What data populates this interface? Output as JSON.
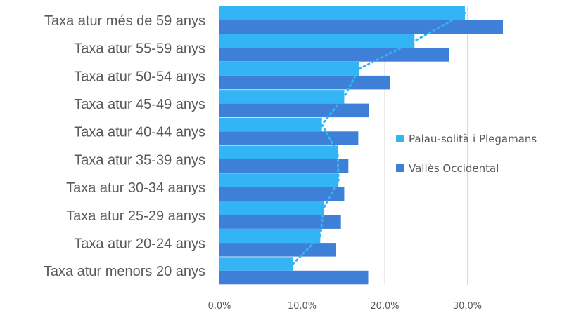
{
  "chart_data": {
    "type": "bar",
    "orientation": "horizontal",
    "categories": [
      "Taxa atur més de 59 anys",
      "Taxa atur 55-59 anys",
      "Taxa atur 50-54 anys",
      "Taxa atur 45-49 anys",
      "Taxa atur 40-44 anys",
      "Taxa atur 35-39 anys",
      "Taxa atur 30-34 aanys",
      "Taxa atur 25-29 aanys",
      "Taxa atur 20-24 anys",
      "Taxa atur menors 20 anys"
    ],
    "series": [
      {
        "name": "Palau-solità i Plegamans",
        "color": "#33b5f5",
        "values": [
          29.7,
          23.6,
          16.9,
          15.1,
          12.4,
          14.3,
          14.4,
          12.6,
          12.2,
          8.9
        ]
      },
      {
        "name": "Vallès Occidental",
        "color": "#3e80d8",
        "values": [
          34.3,
          27.8,
          20.6,
          18.1,
          16.8,
          15.6,
          15.1,
          14.7,
          14.1,
          18.0
        ]
      }
    ],
    "trendline": {
      "series": "Palau-solità i Plegamans",
      "style": "dotted",
      "color": "#33b5f5"
    },
    "xaxis": {
      "ticks": [
        "0,0%",
        "10,0%",
        "20,0%",
        "30,0%"
      ],
      "range": [
        0,
        35
      ]
    },
    "grid": true,
    "legend_position": "right"
  }
}
